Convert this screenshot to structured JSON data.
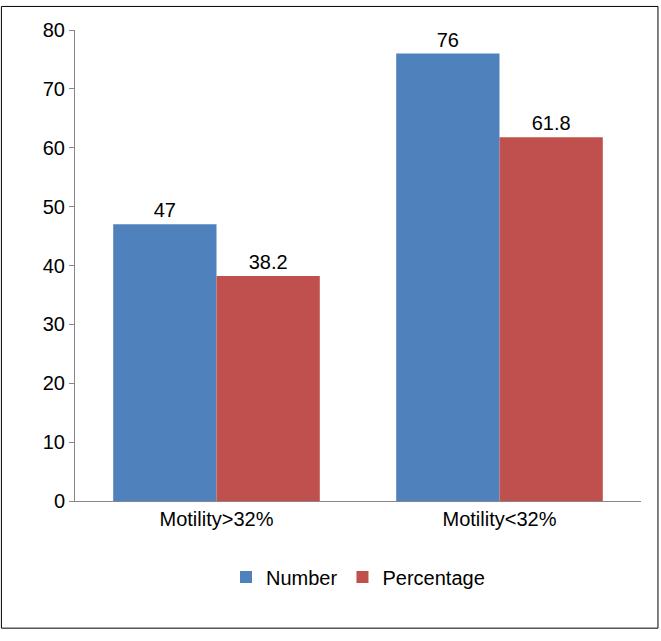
{
  "chart_data": {
    "type": "bar",
    "categories": [
      "Motility>32%",
      "Motility<32%"
    ],
    "series": [
      {
        "name": "Number",
        "color": "#4f81bd",
        "values": [
          47,
          76
        ]
      },
      {
        "name": "Percentage",
        "color": "#c0504d",
        "values": [
          38.2,
          61.8
        ]
      }
    ],
    "ylim": [
      0,
      80
    ],
    "yticks": [
      0,
      10,
      20,
      30,
      40,
      50,
      60,
      70,
      80
    ],
    "grid": false,
    "legend": "bottom",
    "data_labels": true
  }
}
